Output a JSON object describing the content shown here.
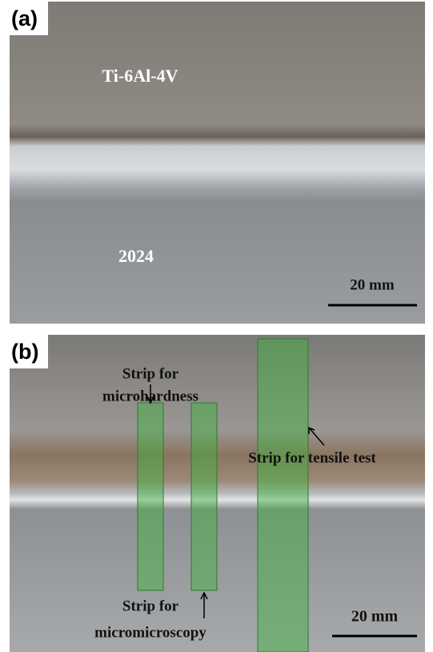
{
  "panels": [
    {
      "label": "(a)",
      "top_material": "Ti-6Al-4V",
      "bottom_material": "2024",
      "scale": "20 mm"
    },
    {
      "label": "(b)",
      "microhardness": [
        "Strip for",
        "microhardness"
      ],
      "tensile": "Strip for tensile test",
      "microscopy": [
        "Strip for",
        "micromicroscopy"
      ],
      "scale": "20 mm"
    }
  ]
}
